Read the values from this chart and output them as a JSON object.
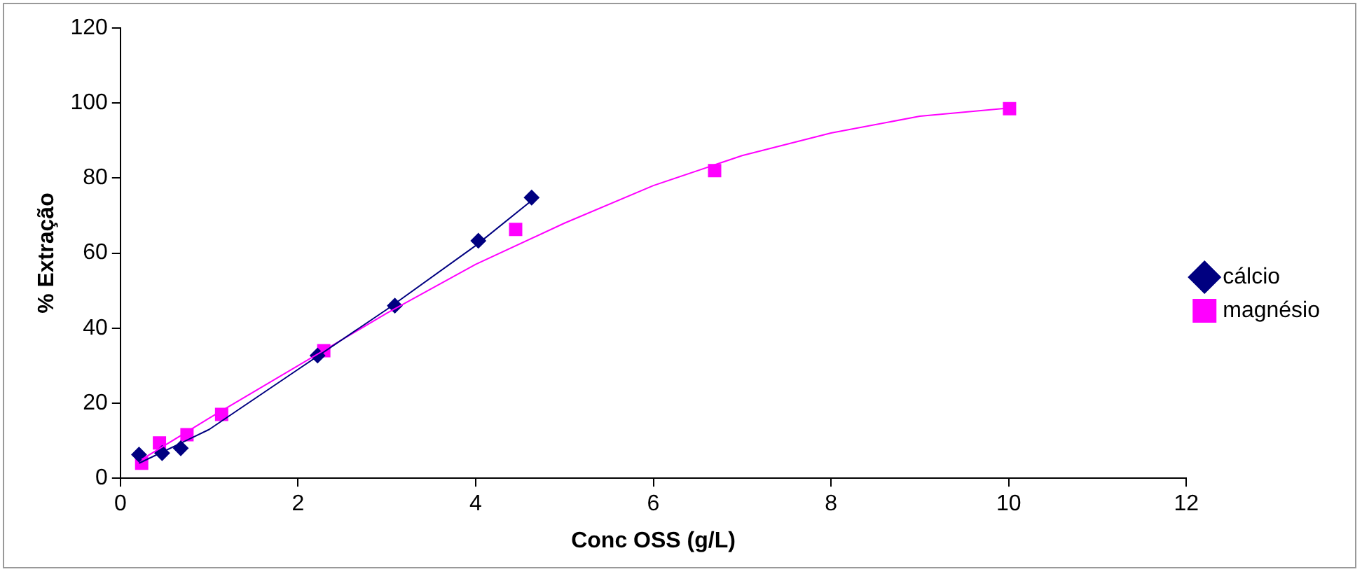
{
  "chart_data": {
    "type": "scatter",
    "xlabel": "Conc OSS (g/L)",
    "ylabel": "% Extração",
    "xlim": [
      0,
      12
    ],
    "xticks": [
      0,
      2,
      4,
      6,
      8,
      10,
      12
    ],
    "ylim": [
      0,
      120
    ],
    "yticks": [
      0,
      20,
      40,
      60,
      80,
      100,
      120
    ],
    "grid": false,
    "legend": "right",
    "series": [
      {
        "name": "cálcio",
        "color": "#000080",
        "marker": "diamond",
        "x": [
          0.21,
          0.47,
          0.68,
          2.22,
          3.09,
          4.03,
          4.63
        ],
        "values": [
          6.3,
          6.7,
          8,
          32.7,
          46,
          63.3,
          74.8
        ]
      },
      {
        "name": "magnésio",
        "color": "#ff00ff",
        "marker": "square",
        "x": [
          0.24,
          0.44,
          0.75,
          1.14,
          2.29,
          4.45,
          6.69,
          10.01
        ],
        "values": [
          4,
          9.4,
          11.6,
          17,
          34,
          66.3,
          82,
          98.5
        ]
      },
      {
        "type": "line",
        "color": "#000080",
        "marker": "none",
        "x": [
          0.21,
          1,
          2,
          3,
          4,
          4.63
        ],
        "values": [
          4,
          13,
          29,
          45,
          62,
          74
        ]
      },
      {
        "type": "line",
        "color": "#ff00ff",
        "marker": "none",
        "x": [
          0.24,
          1,
          2,
          3,
          4,
          5,
          6,
          7,
          8,
          9,
          10.01
        ],
        "values": [
          5,
          16,
          30,
          44,
          57,
          68,
          78,
          86,
          92,
          96.5,
          98.7
        ]
      }
    ]
  }
}
